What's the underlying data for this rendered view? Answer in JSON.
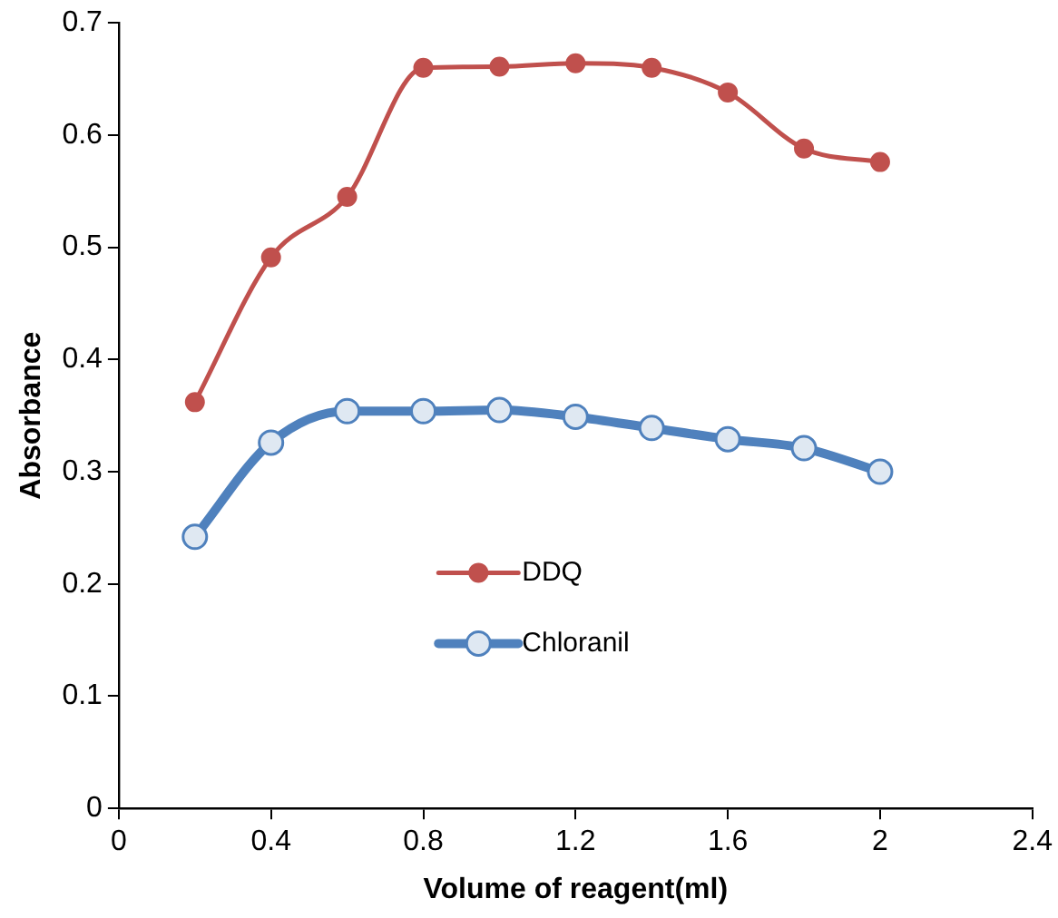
{
  "chart_data": {
    "type": "line",
    "xlabel": "Volume of reagent(ml)",
    "ylabel": "Absorbance",
    "x": [
      0.2,
      0.4,
      0.6,
      0.8,
      1.0,
      1.2,
      1.4,
      1.6,
      1.8,
      2.0
    ],
    "series": [
      {
        "name": "DDQ",
        "color": "#c0504d",
        "values": [
          0.362,
          0.491,
          0.545,
          0.66,
          0.661,
          0.664,
          0.66,
          0.638,
          0.588,
          0.576
        ]
      },
      {
        "name": "Chloranil",
        "color": "#4f81bd",
        "values": [
          0.242,
          0.326,
          0.354,
          0.354,
          0.355,
          0.349,
          0.339,
          0.329,
          0.321,
          0.3
        ]
      }
    ],
    "xlim": [
      0,
      2.4
    ],
    "xticks": [
      0,
      0.4,
      0.8,
      1.2,
      1.6,
      2,
      2.4
    ],
    "ylim": [
      0,
      0.7
    ],
    "yticks": [
      0,
      0.1,
      0.2,
      0.3,
      0.4,
      0.5,
      0.6,
      0.7
    ],
    "grid": false,
    "legend": "bottom",
    "marker": "circle",
    "line_style": "solid"
  }
}
